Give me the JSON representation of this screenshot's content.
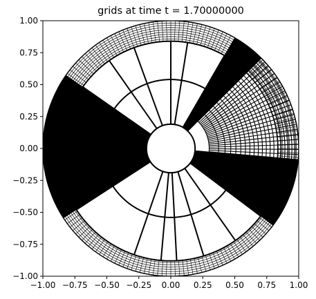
{
  "chart_data": {
    "type": "line",
    "title": "grids at time t =      1.70000000",
    "xlabel": "",
    "ylabel": "",
    "xlim": [
      -1.0,
      1.0
    ],
    "ylim": [
      -1.0,
      1.0
    ],
    "x_ticks": [
      -1.0,
      -0.75,
      -0.5,
      -0.25,
      0.0,
      0.25,
      0.5,
      0.75,
      1.0
    ],
    "y_ticks": [
      -1.0,
      -0.75,
      -0.5,
      -0.25,
      0.0,
      0.25,
      0.5,
      0.75,
      1.0
    ],
    "x_tick_labels": [
      "−1.00",
      "−0.75",
      "−0.50",
      "−0.25",
      "0.00",
      "0.25",
      "0.50",
      "0.75",
      "1.00"
    ],
    "y_tick_labels": [
      "−1.00",
      "−0.75",
      "−0.50",
      "−0.25",
      "0.00",
      "0.25",
      "0.50",
      "0.75",
      "1.00"
    ],
    "grid": false,
    "line_color": "#000000",
    "annulus": {
      "inner_radius": 0.19,
      "outer_radius": 1.0
    },
    "coarse_blocks": [
      {
        "theta_start_deg": 60,
        "theta_end_deg": 145,
        "radii": [
          0.19,
          0.54,
          0.84
        ],
        "theta_lines_deg": [
          60,
          81,
          90,
          110,
          125,
          145
        ]
      },
      {
        "theta_start_deg": 213,
        "theta_end_deg": 323,
        "radii": [
          0.19,
          0.54,
          0.88
        ],
        "theta_lines_deg": [
          213,
          251,
          265,
          273,
          287,
          305,
          323
        ]
      }
    ],
    "dense_wedges": [
      {
        "theta_start_deg": 145,
        "theta_end_deg": 213,
        "r_start": 0.19,
        "r_end": 1.0,
        "density": "very-dense"
      },
      {
        "theta_start_deg": 323,
        "theta_end_deg": 355,
        "r_start": 0.19,
        "r_end": 1.0,
        "density": "very-dense"
      },
      {
        "theta_start_deg": 45,
        "theta_end_deg": 60,
        "r_start": 0.19,
        "r_end": 1.0,
        "density": "very-dense"
      }
    ],
    "medium_block": {
      "theta_start_deg": -5,
      "theta_end_deg": 45,
      "r_start": 0.3,
      "r_end": 1.0,
      "radial_count": 20,
      "spokes_count": 22
    },
    "outer_ring": {
      "r_start": 0.84,
      "r_end": 1.0,
      "radial_count": 9,
      "spokes_every_deg": 2
    }
  }
}
